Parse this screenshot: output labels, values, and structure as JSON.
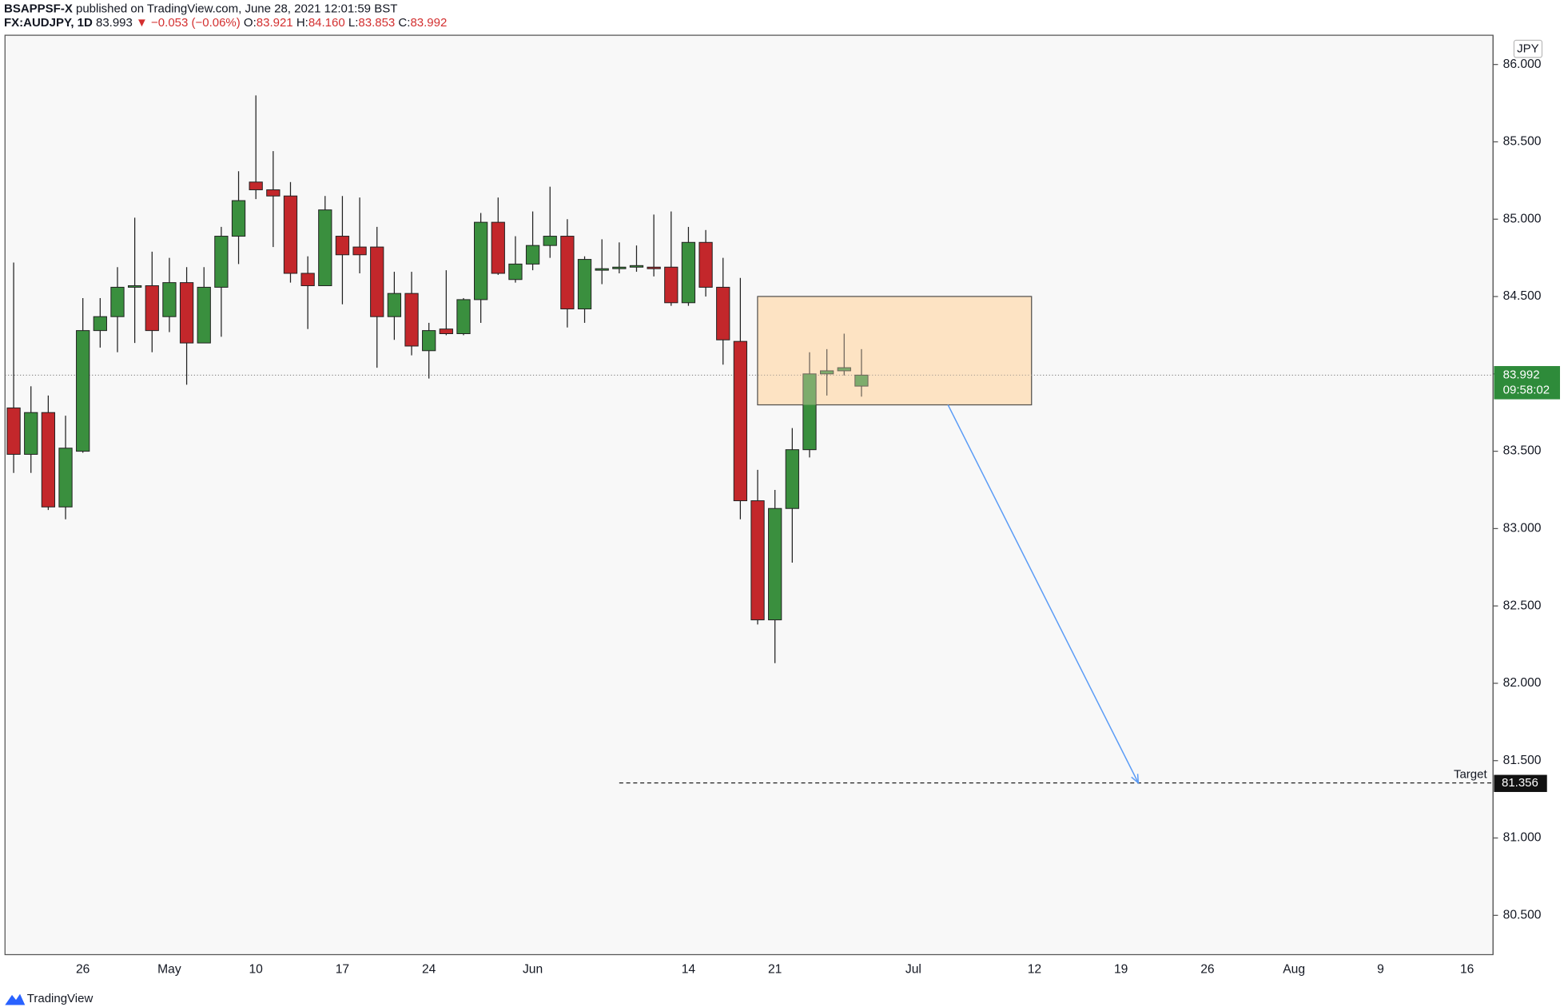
{
  "header": {
    "author": "BSAPPSF-X",
    "published": "published on TradingView.com, June 28, 2021 12:01:59 BST",
    "symbol": "FX:AUDJPY, 1D",
    "last": "83.993",
    "change": "▼ −0.053 (−0.06%)",
    "o_label": "O:",
    "o": "83.921",
    "h_label": "H:",
    "h": "84.160",
    "l_label": "L:",
    "l": "83.853",
    "c_label": "C:",
    "c": "83.992"
  },
  "footer": {
    "brand": "TradingView"
  },
  "chart_data": {
    "type": "candlestick",
    "currency": "JPY",
    "up_color": "#3a8f3e",
    "down_color": "#c3272b",
    "categories": [
      null,
      null,
      null,
      null,
      "26",
      null,
      null,
      null,
      null,
      "May",
      null,
      null,
      null,
      null,
      "10",
      null,
      null,
      null,
      null,
      "17",
      null,
      null,
      null,
      null,
      "24",
      null,
      null,
      null,
      null,
      null,
      "Jun",
      null,
      null,
      null,
      null,
      null,
      null,
      null,
      null,
      "14",
      null,
      null,
      null,
      null,
      "21",
      null,
      null,
      null,
      null,
      null,
      null,
      null,
      "Jul",
      null,
      null,
      null,
      null,
      null,
      null,
      "12",
      null,
      null,
      null,
      null,
      "19",
      null,
      null,
      null,
      null,
      "26",
      null,
      null,
      null,
      null,
      "Aug",
      null,
      null,
      null,
      null,
      "9",
      null,
      null,
      null,
      null,
      "16",
      null
    ],
    "open": [
      83.78,
      83.48,
      83.75,
      83.14,
      83.5,
      84.28,
      84.37,
      84.56,
      84.57,
      84.37,
      84.59,
      84.2,
      84.56,
      84.89,
      85.24,
      85.19,
      85.15,
      84.65,
      84.57,
      84.89,
      84.82,
      84.82,
      84.37,
      84.52,
      84.15,
      84.29,
      84.26,
      84.48,
      84.98,
      84.61,
      84.71,
      84.83,
      84.89,
      84.42,
      84.67,
      84.68,
      84.69,
      84.69,
      84.69,
      84.46,
      84.85,
      84.56,
      84.21,
      83.18,
      82.41,
      83.13,
      83.51,
      84.0,
      84.02,
      83.921,
      null,
      null,
      null,
      null,
      null,
      null,
      null,
      null,
      null,
      null,
      null,
      null,
      null,
      null,
      null,
      null,
      null,
      null,
      null,
      null,
      null,
      null,
      null,
      null,
      null,
      null,
      null,
      null,
      null,
      null,
      null,
      null,
      null,
      null,
      null,
      null
    ],
    "high": [
      84.72,
      83.92,
      83.86,
      83.73,
      84.49,
      84.49,
      84.69,
      85.01,
      84.79,
      84.75,
      84.69,
      84.69,
      84.95,
      85.31,
      85.8,
      85.44,
      85.24,
      84.76,
      85.15,
      85.15,
      85.14,
      84.95,
      84.66,
      84.66,
      84.33,
      84.67,
      84.49,
      85.04,
      85.14,
      84.89,
      85.05,
      85.21,
      85.0,
      84.76,
      84.87,
      84.85,
      84.83,
      85.03,
      85.05,
      84.95,
      84.93,
      84.75,
      84.62,
      83.38,
      83.25,
      83.65,
      84.14,
      84.16,
      84.26,
      84.16,
      null,
      null,
      null,
      null,
      null,
      null,
      null,
      null,
      null,
      null,
      null,
      null,
      null,
      null,
      null,
      null,
      null,
      null,
      null,
      null,
      null,
      null,
      null,
      null,
      null,
      null,
      null,
      null,
      null,
      null,
      null,
      null,
      null,
      null,
      null,
      null
    ],
    "low": [
      83.36,
      83.36,
      83.12,
      83.06,
      83.49,
      84.17,
      84.14,
      84.2,
      84.14,
      84.27,
      83.93,
      84.2,
      84.24,
      84.71,
      85.13,
      84.82,
      84.59,
      84.29,
      84.57,
      84.45,
      84.65,
      84.04,
      84.22,
      84.12,
      83.97,
      84.25,
      84.25,
      84.33,
      84.64,
      84.59,
      84.67,
      84.75,
      84.3,
      84.33,
      84.58,
      84.65,
      84.66,
      84.63,
      84.44,
      84.44,
      84.5,
      84.06,
      83.06,
      82.38,
      82.13,
      82.78,
      83.46,
      83.86,
      83.99,
      83.853,
      null,
      null,
      null,
      null,
      null,
      null,
      null,
      null,
      null,
      null,
      null,
      null,
      null,
      null,
      null,
      null,
      null,
      null,
      null,
      null,
      null,
      null,
      null,
      null,
      null,
      null,
      null,
      null,
      null,
      null,
      null,
      null,
      null,
      null,
      null,
      null
    ],
    "close": [
      83.48,
      83.75,
      83.14,
      83.52,
      84.28,
      84.37,
      84.56,
      84.57,
      84.28,
      84.59,
      84.2,
      84.56,
      84.89,
      85.12,
      85.19,
      85.15,
      84.65,
      84.57,
      85.06,
      84.77,
      84.77,
      84.37,
      84.52,
      84.18,
      84.28,
      84.26,
      84.48,
      84.98,
      84.65,
      84.71,
      84.83,
      84.89,
      84.42,
      84.74,
      84.68,
      84.69,
      84.7,
      84.68,
      84.46,
      84.85,
      84.56,
      84.22,
      83.18,
      82.41,
      83.13,
      83.51,
      84.0,
      84.02,
      84.04,
      83.992,
      null,
      null,
      null,
      null,
      null,
      null,
      null,
      null,
      null,
      null,
      null,
      null,
      null,
      null,
      null,
      null,
      null,
      null,
      null,
      null,
      null,
      null,
      null,
      null,
      null,
      null,
      null,
      null,
      null,
      null,
      null,
      null,
      null,
      null,
      null,
      null
    ],
    "ylim": [
      80.246,
      86.189
    ],
    "yticks": [
      {
        "value": 80.5,
        "label": "80.500"
      },
      {
        "value": 81,
        "label": "81.000"
      },
      {
        "value": 81.5,
        "label": "81.500"
      },
      {
        "value": 82,
        "label": "82.000"
      },
      {
        "value": 82.5,
        "label": "82.500"
      },
      {
        "value": 83,
        "label": "83.000"
      },
      {
        "value": 83.5,
        "label": "83.500"
      },
      {
        "value": 84,
        "label": "84.000"
      },
      {
        "value": 84.5,
        "label": "84.500"
      },
      {
        "value": 85,
        "label": "85.000"
      },
      {
        "value": 85.5,
        "label": "85.500"
      },
      {
        "value": 86,
        "label": "86.000"
      }
    ],
    "price_tag": {
      "value": 83.992,
      "label": "83.992",
      "countdown": "09:58:02",
      "color": "#2e8b3a"
    },
    "zone": {
      "ylim": [
        83.8,
        84.5
      ],
      "color": "#fde3c4"
    },
    "target": {
      "value": 81.356,
      "name": "Target",
      "label": "81.356"
    },
    "arrow_color": "#5b9cf6"
  }
}
